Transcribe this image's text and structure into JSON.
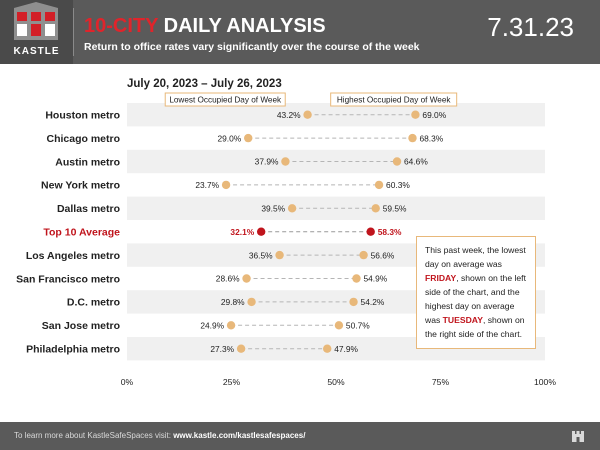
{
  "header": {
    "brand": "KASTLE",
    "title_accent": "10-CITY",
    "title_rest": " DAILY ANALYSIS",
    "subtitle": "Return to office rates vary significantly over the course of the week",
    "date": "7.31.23"
  },
  "date_range": "July 20, 2023 – July 26, 2023",
  "callout": {
    "part1": "This past week, the lowest day on average was ",
    "low_day": "FRIDAY",
    "part2": ", shown on the left side of the chart, and the highest day on average was ",
    "high_day": "TUESDAY",
    "part3": ", shown on the right side of the chart."
  },
  "footer": {
    "prefix": "To learn more about KastleSafeSpaces visit: ",
    "link": "www.kastle.com/kastlesafespaces/"
  },
  "colors": {
    "dot": "#e8b87a",
    "highlight": "#c0141c",
    "header_bg": "#5a5a5a",
    "row_alt": "#f0f0f0"
  },
  "chart_data": {
    "type": "dumbbell",
    "legend_low": "Lowest Occupied Day of Week",
    "legend_high": "Highest Occupied Day of Week",
    "xlim": [
      0,
      100
    ],
    "xticks": [
      0,
      25,
      50,
      75,
      100
    ],
    "tick_suffix": "%",
    "highlight_category": "Top 10 Average",
    "categories": [
      "Houston metro",
      "Chicago metro",
      "Austin metro",
      "New York metro",
      "Dallas metro",
      "Top 10 Average",
      "Los Angeles metro",
      "San Francisco metro",
      "D.C. metro",
      "San Jose metro",
      "Philadelphia metro"
    ],
    "series": [
      {
        "name": "Lowest Occupied Day of Week",
        "values": [
          43.2,
          29.0,
          37.9,
          23.7,
          39.5,
          32.1,
          36.5,
          28.6,
          29.8,
          24.9,
          27.3
        ]
      },
      {
        "name": "Highest Occupied Day of Week",
        "values": [
          69.0,
          68.3,
          64.6,
          60.3,
          59.5,
          58.3,
          56.6,
          54.9,
          54.2,
          50.7,
          47.9
        ]
      }
    ]
  }
}
